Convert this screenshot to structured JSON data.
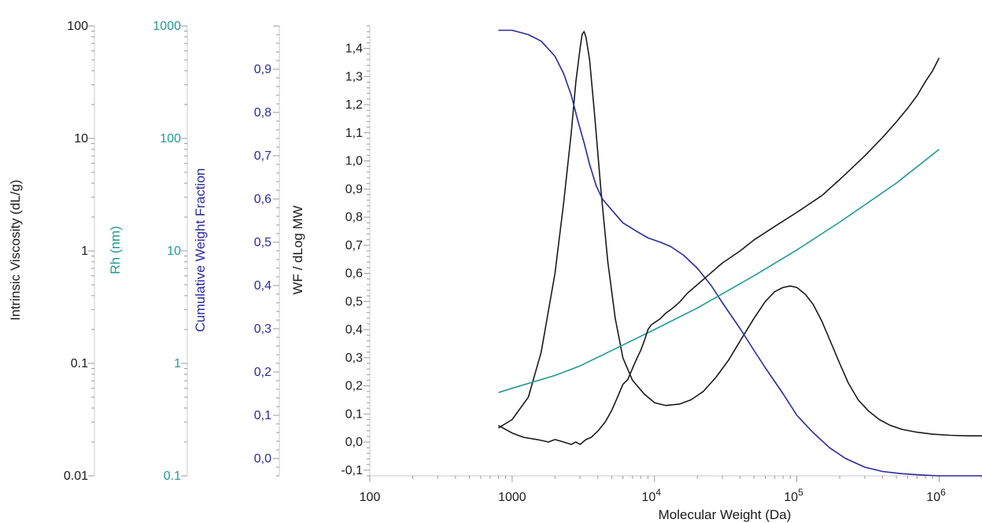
{
  "colors": {
    "black": "#1a1a1a",
    "teal": "#1f9a96",
    "navy": "#2a2a9a"
  },
  "chart_data": {
    "type": "line",
    "x_axis": {
      "label": "Molecular Weight (Da)",
      "scale": "log",
      "range": [
        100,
        2000000
      ],
      "tick_labels": [
        {
          "value": 100,
          "text": "100"
        },
        {
          "value": 1000,
          "text": "1000"
        },
        {
          "value": 10000,
          "base": "10",
          "exp": "4"
        },
        {
          "value": 100000,
          "base": "10",
          "exp": "5"
        },
        {
          "value": 1000000,
          "base": "10",
          "exp": "6"
        }
      ]
    },
    "y_axes": [
      {
        "id": "iv",
        "label": "Intrinsic Viscosity (dL/g)",
        "scale": "log",
        "range": [
          0.01,
          100
        ],
        "color": "#1a1a1a",
        "tick_labels": [
          "0.01",
          "0.1",
          "1",
          "10",
          "100"
        ],
        "tick_values": [
          0.01,
          0.1,
          1,
          10,
          100
        ]
      },
      {
        "id": "rh",
        "label": "Rh (nm)",
        "scale": "log",
        "range": [
          0.1,
          1000
        ],
        "color": "#1f9a96",
        "tick_labels": [
          "0.1",
          "1",
          "10",
          "100",
          "1000"
        ],
        "tick_values": [
          0.1,
          1,
          10,
          100,
          1000
        ]
      },
      {
        "id": "cwf",
        "label": "Cumulative Weight Fraction",
        "scale": "linear",
        "range": [
          -0.04,
          1.0
        ],
        "color": "#2a2a9a",
        "tick_labels": [
          "0,0",
          "0,1",
          "0,2",
          "0,3",
          "0,4",
          "0,5",
          "0,6",
          "0,7",
          "0,8",
          "0,9"
        ],
        "tick_values": [
          0,
          0.1,
          0.2,
          0.3,
          0.4,
          0.5,
          0.6,
          0.7,
          0.8,
          0.9
        ]
      },
      {
        "id": "wf",
        "label": "WF / dLog MW",
        "scale": "linear",
        "range": [
          -0.12,
          1.48
        ],
        "color": "#1a1a1a",
        "tick_labels": [
          "-0,1",
          "0,0",
          "0,1",
          "0,2",
          "0,3",
          "0,4",
          "0,5",
          "0,6",
          "0,7",
          "0,8",
          "0,9",
          "1,0",
          "1,1",
          "1,2",
          "1,3",
          "1,4"
        ],
        "tick_values": [
          -0.1,
          0,
          0.1,
          0.2,
          0.3,
          0.4,
          0.5,
          0.6,
          0.7,
          0.8,
          0.9,
          1.0,
          1.1,
          1.2,
          1.3,
          1.4
        ]
      }
    ],
    "series": [
      {
        "axis": "wf",
        "color": "#1a1a1a",
        "x": [
          800,
          1000,
          1300,
          1600,
          2000,
          2300,
          2600,
          2800,
          3000,
          3100,
          3200,
          3300,
          3500,
          3800,
          4200,
          4700,
          5300,
          6000,
          7000,
          8500,
          10000,
          12000,
          15000,
          18000,
          22000,
          27000,
          33000,
          40000,
          50000,
          60000,
          70000,
          80000,
          90000,
          100000,
          115000,
          130000,
          150000,
          175000,
          200000,
          230000,
          270000,
          320000,
          380000,
          450000,
          550000,
          700000,
          900000,
          1200000,
          1600000,
          2000000
        ],
        "y": [
          0.05,
          0.08,
          0.16,
          0.32,
          0.6,
          0.85,
          1.1,
          1.28,
          1.4,
          1.45,
          1.46,
          1.44,
          1.36,
          1.16,
          0.9,
          0.64,
          0.44,
          0.3,
          0.22,
          0.17,
          0.14,
          0.13,
          0.135,
          0.15,
          0.18,
          0.23,
          0.29,
          0.36,
          0.44,
          0.5,
          0.535,
          0.55,
          0.555,
          0.55,
          0.525,
          0.49,
          0.43,
          0.35,
          0.28,
          0.21,
          0.15,
          0.11,
          0.08,
          0.06,
          0.045,
          0.035,
          0.028,
          0.024,
          0.022,
          0.022
        ]
      },
      {
        "axis": "cwf",
        "color": "#2a2a9a",
        "x": [
          800,
          1000,
          1300,
          1600,
          2000,
          2300,
          2600,
          2900,
          3200,
          3500,
          3900,
          4300,
          5000,
          6000,
          7500,
          9000,
          11000,
          13000,
          16000,
          20000,
          25000,
          30000,
          40000,
          50000,
          60000,
          80000,
          100000,
          130000,
          170000,
          220000,
          300000,
          400000,
          550000,
          750000,
          1000000,
          1500000,
          2000000
        ],
        "y": [
          0.99,
          0.99,
          0.98,
          0.965,
          0.93,
          0.89,
          0.84,
          0.78,
          0.73,
          0.68,
          0.63,
          0.6,
          0.575,
          0.545,
          0.525,
          0.51,
          0.5,
          0.49,
          0.47,
          0.44,
          0.4,
          0.36,
          0.3,
          0.25,
          0.21,
          0.15,
          0.1,
          0.06,
          0.025,
          0.0,
          -0.02,
          -0.03,
          -0.035,
          -0.038,
          -0.04,
          -0.04,
          -0.04
        ]
      },
      {
        "axis": "rh",
        "color": "#1f9a96",
        "x": [
          800,
          1000,
          2000,
          3000,
          5000,
          10000,
          20000,
          50000,
          100000,
          200000,
          500000,
          1000000
        ],
        "y": [
          0.55,
          0.6,
          0.78,
          0.95,
          1.3,
          2.0,
          3.1,
          6.0,
          10.2,
          18.0,
          40.0,
          80.0
        ]
      },
      {
        "axis": "iv",
        "color": "#1a1a1a",
        "x": [
          800,
          1000,
          1200,
          1500,
          1800,
          2000,
          2300,
          2600,
          2800,
          3000,
          3300,
          3600,
          4000,
          4500,
          5000,
          5500,
          6000,
          6500,
          7000,
          7500,
          8000,
          8500,
          9000,
          9500,
          10000,
          11000,
          12000,
          13000,
          15000,
          17000,
          20000,
          25000,
          30000,
          40000,
          50000,
          70000,
          100000,
          150000,
          200000,
          300000,
          400000,
          500000,
          600000,
          700000,
          800000,
          900000,
          1000000
        ],
        "y": [
          0.028,
          0.024,
          0.022,
          0.021,
          0.02,
          0.021,
          0.02,
          0.019,
          0.02,
          0.019,
          0.021,
          0.022,
          0.025,
          0.03,
          0.038,
          0.05,
          0.065,
          0.072,
          0.09,
          0.11,
          0.13,
          0.16,
          0.2,
          0.22,
          0.23,
          0.25,
          0.28,
          0.3,
          0.35,
          0.42,
          0.5,
          0.64,
          0.78,
          1.0,
          1.25,
          1.65,
          2.2,
          3.1,
          4.3,
          7.0,
          10.2,
          14.0,
          18.5,
          24.0,
          32.0,
          40.0,
          52.0
        ]
      }
    ],
    "legend": "none",
    "grid": false
  }
}
